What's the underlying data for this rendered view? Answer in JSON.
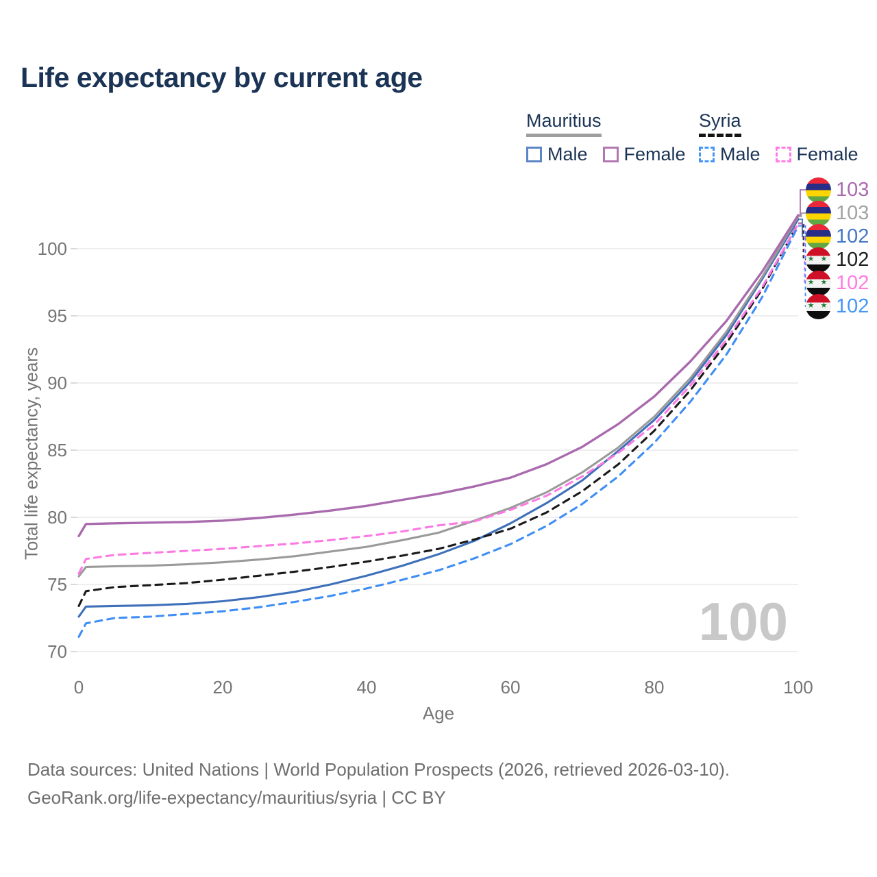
{
  "title": "Life expectancy by current age",
  "legend": {
    "groups": [
      {
        "name": "Mauritius",
        "underline": "solid",
        "underline_color": "#9e9e9e",
        "items": [
          {
            "label": "Male",
            "color": "#5c85c6",
            "dashed": false
          },
          {
            "label": "Female",
            "color": "#b277b2",
            "dashed": false
          }
        ]
      },
      {
        "name": "Syria",
        "underline": "dashed",
        "underline_color": "#141414",
        "items": [
          {
            "label": "Male",
            "color": "#4596f7",
            "dashed": true
          },
          {
            "label": "Female",
            "color": "#ff7ce8",
            "dashed": true
          }
        ]
      }
    ]
  },
  "chart_data": {
    "type": "line",
    "title": "Life expectancy by current age",
    "xlabel": "Age",
    "ylabel": "Total life expectancy, years",
    "xlim": [
      0,
      100
    ],
    "ylim": [
      70,
      103
    ],
    "x_ticks": [
      0,
      20,
      40,
      60,
      80,
      100
    ],
    "y_ticks": [
      70,
      75,
      80,
      85,
      90,
      95,
      100
    ],
    "grid": "horizontal",
    "legend_position": "top-right",
    "ages": [
      0,
      1,
      5,
      10,
      15,
      20,
      25,
      30,
      35,
      40,
      45,
      50,
      55,
      60,
      65,
      70,
      75,
      80,
      85,
      90,
      95,
      100
    ],
    "series": [
      {
        "name": "Mauritius Female",
        "country": "Mauritius",
        "sex": "Female",
        "color": "#a96bae",
        "dashed": false,
        "values": [
          78.6,
          79.5,
          79.55,
          79.6,
          79.65,
          79.75,
          79.95,
          80.2,
          80.5,
          80.85,
          81.3,
          81.75,
          82.3,
          82.95,
          83.95,
          85.25,
          86.95,
          89.0,
          91.6,
          94.6,
          98.3,
          102.5
        ],
        "end_label": "103"
      },
      {
        "name": "Mauritius Total",
        "country": "Mauritius",
        "sex": "Total",
        "color": "#9a9a9a",
        "dashed": false,
        "values": [
          75.6,
          76.3,
          76.35,
          76.4,
          76.5,
          76.65,
          76.85,
          77.1,
          77.45,
          77.8,
          78.3,
          78.85,
          79.75,
          80.7,
          81.85,
          83.35,
          85.2,
          87.5,
          90.35,
          93.8,
          97.9,
          102.4
        ],
        "end_label": "103"
      },
      {
        "name": "Mauritius Male",
        "country": "Mauritius",
        "sex": "Male",
        "color": "#3e70ba",
        "dashed": false,
        "values": [
          72.6,
          73.35,
          73.4,
          73.45,
          73.55,
          73.75,
          74.05,
          74.45,
          75.0,
          75.65,
          76.4,
          77.25,
          78.25,
          79.55,
          81.05,
          82.75,
          84.95,
          87.25,
          90.1,
          93.55,
          97.75,
          102.2
        ],
        "end_label": "102"
      },
      {
        "name": "Syria Total",
        "country": "Syria",
        "sex": "Total",
        "color": "#1a1a1a",
        "dashed": true,
        "values": [
          73.4,
          74.5,
          74.8,
          74.95,
          75.1,
          75.35,
          75.65,
          75.95,
          76.3,
          76.7,
          77.15,
          77.65,
          78.35,
          79.15,
          80.35,
          81.95,
          83.95,
          86.45,
          89.45,
          92.95,
          97.0,
          101.9
        ],
        "end_label": "102"
      },
      {
        "name": "Syria Female",
        "country": "Syria",
        "sex": "Female",
        "color": "#fb7ae3",
        "dashed": true,
        "values": [
          75.8,
          76.9,
          77.2,
          77.35,
          77.5,
          77.65,
          77.85,
          78.05,
          78.3,
          78.6,
          78.95,
          79.4,
          79.7,
          80.55,
          81.6,
          83.05,
          84.8,
          86.9,
          89.8,
          93.2,
          97.15,
          101.85
        ],
        "end_label": "102"
      },
      {
        "name": "Syria Male",
        "country": "Syria",
        "sex": "Male",
        "color": "#3f8ef5",
        "dashed": true,
        "values": [
          71.1,
          72.1,
          72.5,
          72.6,
          72.8,
          73.0,
          73.3,
          73.7,
          74.15,
          74.7,
          75.35,
          76.05,
          76.95,
          78.0,
          79.35,
          81.0,
          83.05,
          85.55,
          88.6,
          92.1,
          96.4,
          101.7
        ],
        "end_label": "102"
      }
    ]
  },
  "end_labels": [
    {
      "country": "Mauritius",
      "value": "103",
      "color": "#a96bae"
    },
    {
      "country": "Mauritius",
      "value": "103",
      "color": "#a3a3a3"
    },
    {
      "country": "Mauritius",
      "value": "102",
      "color": "#4478c9"
    },
    {
      "country": "Syria",
      "value": "102",
      "color": "#1f1f1f"
    },
    {
      "country": "Syria",
      "value": "102",
      "color": "#ff7ce0"
    },
    {
      "country": "Syria",
      "value": "102",
      "color": "#4596f7"
    }
  ],
  "watermark": "100",
  "footer": {
    "line1": "Data sources: United Nations | World Population Prospects (2026, retrieved 2026-03-10).",
    "line2": "GeoRank.org/life-expectancy/mauritius/syria | CC BY"
  }
}
